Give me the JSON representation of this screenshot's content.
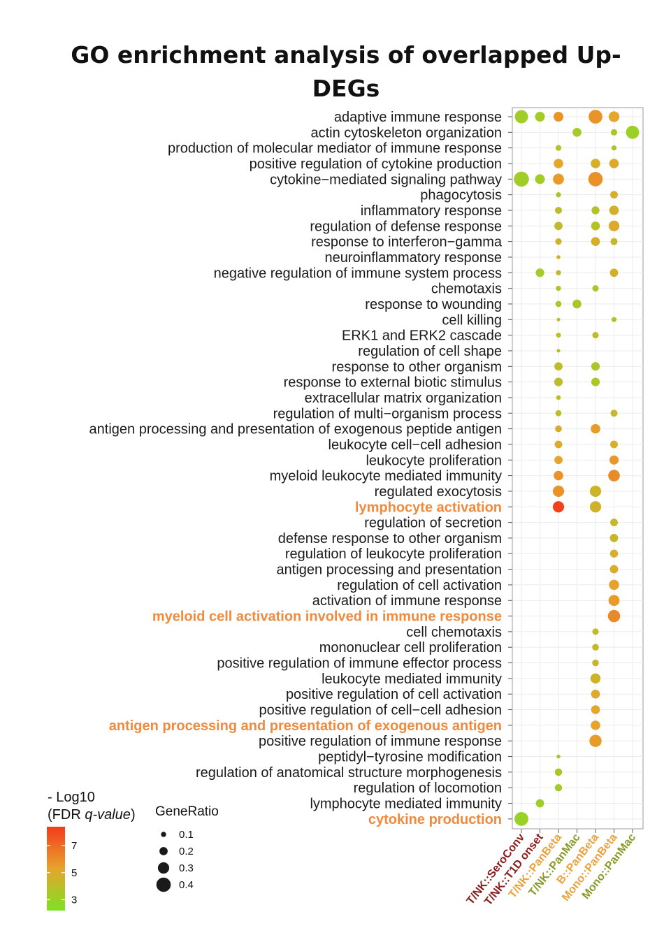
{
  "chart_data": {
    "type": "scatter",
    "title_lines": [
      "GO enrichment analysis of overlapped Up-",
      "DEGs"
    ],
    "columns": [
      {
        "label": "T/NK::SeroConv",
        "color": "#8b1c1c"
      },
      {
        "label": "T/NK::T1D onset",
        "color": "#8b1c1c"
      },
      {
        "label": "T/NK::PanBeta",
        "color": "#e8a33c"
      },
      {
        "label": "T/NK::PanMac",
        "color": "#8a9a2a"
      },
      {
        "label": "B::PanBeta",
        "color": "#e8a33c"
      },
      {
        "label": "Mono::PanBeta",
        "color": "#e8a33c"
      },
      {
        "label": "Mono::PanMac",
        "color": "#8a9a2a"
      }
    ],
    "terms": [
      {
        "label": "adaptive immune response",
        "highlight": false
      },
      {
        "label": "actin cytoskeleton organization",
        "highlight": false
      },
      {
        "label": "production of molecular mediator of immune response",
        "highlight": false
      },
      {
        "label": "positive regulation of cytokine production",
        "highlight": false
      },
      {
        "label": "cytokine−mediated signaling pathway",
        "highlight": false
      },
      {
        "label": "phagocytosis",
        "highlight": false
      },
      {
        "label": "inflammatory response",
        "highlight": false
      },
      {
        "label": "regulation of defense response",
        "highlight": false
      },
      {
        "label": "response to interferon−gamma",
        "highlight": false
      },
      {
        "label": "neuroinflammatory response",
        "highlight": false
      },
      {
        "label": "negative regulation of immune system process",
        "highlight": false
      },
      {
        "label": "chemotaxis",
        "highlight": false
      },
      {
        "label": "response to wounding",
        "highlight": false
      },
      {
        "label": "cell killing",
        "highlight": false
      },
      {
        "label": "ERK1 and ERK2 cascade",
        "highlight": false
      },
      {
        "label": "regulation of cell shape",
        "highlight": false
      },
      {
        "label": "response to other organism",
        "highlight": false
      },
      {
        "label": "response to external biotic stimulus",
        "highlight": false
      },
      {
        "label": "extracellular matrix organization",
        "highlight": false
      },
      {
        "label": "regulation of multi−organism process",
        "highlight": false
      },
      {
        "label": "antigen processing and presentation of exogenous peptide antigen",
        "highlight": false
      },
      {
        "label": "leukocyte cell−cell adhesion",
        "highlight": false
      },
      {
        "label": "leukocyte proliferation",
        "highlight": false
      },
      {
        "label": "myeloid leukocyte mediated immunity",
        "highlight": false
      },
      {
        "label": "regulated exocytosis",
        "highlight": false
      },
      {
        "label": "lymphocyte activation",
        "highlight": true
      },
      {
        "label": "regulation of secretion",
        "highlight": false
      },
      {
        "label": "defense response to other organism",
        "highlight": false
      },
      {
        "label": "regulation of leukocyte proliferation",
        "highlight": false
      },
      {
        "label": "antigen processing and presentation",
        "highlight": false
      },
      {
        "label": "regulation of cell activation",
        "highlight": false
      },
      {
        "label": "activation of immune response",
        "highlight": false
      },
      {
        "label": "myeloid cell activation involved in immune response",
        "highlight": true
      },
      {
        "label": "cell chemotaxis",
        "highlight": false
      },
      {
        "label": "mononuclear cell proliferation",
        "highlight": false
      },
      {
        "label": "positive regulation of immune effector process",
        "highlight": false
      },
      {
        "label": "leukocyte mediated immunity",
        "highlight": false
      },
      {
        "label": "positive regulation of cell activation",
        "highlight": false
      },
      {
        "label": "positive regulation of cell−cell adhesion",
        "highlight": false
      },
      {
        "label": "antigen processing and presentation of exogenous antigen",
        "highlight": true
      },
      {
        "label": "positive regulation of immune response",
        "highlight": false
      },
      {
        "label": "peptidyl−tyrosine modification",
        "highlight": false
      },
      {
        "label": "regulation of anatomical structure morphogenesis",
        "highlight": false
      },
      {
        "label": "regulation of locomotion",
        "highlight": false
      },
      {
        "label": "lymphocyte mediated immunity",
        "highlight": false
      },
      {
        "label": "cytokine production",
        "highlight": true
      }
    ],
    "points": [
      {
        "term": 0,
        "col": 0,
        "gene_ratio": 0.36,
        "neg_log10_fdr": 3.2
      },
      {
        "term": 0,
        "col": 1,
        "gene_ratio": 0.25,
        "neg_log10_fdr": 3.3
      },
      {
        "term": 0,
        "col": 2,
        "gene_ratio": 0.25,
        "neg_log10_fdr": 5.8
      },
      {
        "term": 0,
        "col": 4,
        "gene_ratio": 0.38,
        "neg_log10_fdr": 5.8
      },
      {
        "term": 0,
        "col": 5,
        "gene_ratio": 0.28,
        "neg_log10_fdr": 5.2
      },
      {
        "term": 1,
        "col": 3,
        "gene_ratio": 0.22,
        "neg_log10_fdr": 3.3
      },
      {
        "term": 1,
        "col": 5,
        "gene_ratio": 0.14,
        "neg_log10_fdr": 3.6
      },
      {
        "term": 1,
        "col": 6,
        "gene_ratio": 0.36,
        "neg_log10_fdr": 3.0
      },
      {
        "term": 2,
        "col": 2,
        "gene_ratio": 0.12,
        "neg_log10_fdr": 3.8
      },
      {
        "term": 2,
        "col": 5,
        "gene_ratio": 0.1,
        "neg_log10_fdr": 3.6
      },
      {
        "term": 3,
        "col": 2,
        "gene_ratio": 0.24,
        "neg_log10_fdr": 5.2
      },
      {
        "term": 3,
        "col": 4,
        "gene_ratio": 0.24,
        "neg_log10_fdr": 4.8
      },
      {
        "term": 3,
        "col": 5,
        "gene_ratio": 0.24,
        "neg_log10_fdr": 5.0
      },
      {
        "term": 4,
        "col": 0,
        "gene_ratio": 0.42,
        "neg_log10_fdr": 3.2
      },
      {
        "term": 4,
        "col": 1,
        "gene_ratio": 0.25,
        "neg_log10_fdr": 3.3
      },
      {
        "term": 4,
        "col": 2,
        "gene_ratio": 0.29,
        "neg_log10_fdr": 5.6
      },
      {
        "term": 4,
        "col": 4,
        "gene_ratio": 0.4,
        "neg_log10_fdr": 5.9
      },
      {
        "term": 5,
        "col": 2,
        "gene_ratio": 0.1,
        "neg_log10_fdr": 3.7
      },
      {
        "term": 5,
        "col": 5,
        "gene_ratio": 0.18,
        "neg_log10_fdr": 4.8
      },
      {
        "term": 6,
        "col": 2,
        "gene_ratio": 0.16,
        "neg_log10_fdr": 4.1
      },
      {
        "term": 6,
        "col": 4,
        "gene_ratio": 0.19,
        "neg_log10_fdr": 3.8
      },
      {
        "term": 6,
        "col": 5,
        "gene_ratio": 0.24,
        "neg_log10_fdr": 4.7
      },
      {
        "term": 7,
        "col": 2,
        "gene_ratio": 0.2,
        "neg_log10_fdr": 4.2
      },
      {
        "term": 7,
        "col": 4,
        "gene_ratio": 0.22,
        "neg_log10_fdr": 3.8
      },
      {
        "term": 7,
        "col": 5,
        "gene_ratio": 0.28,
        "neg_log10_fdr": 5.0
      },
      {
        "term": 8,
        "col": 2,
        "gene_ratio": 0.14,
        "neg_log10_fdr": 4.6
      },
      {
        "term": 8,
        "col": 4,
        "gene_ratio": 0.22,
        "neg_log10_fdr": 4.8
      },
      {
        "term": 8,
        "col": 5,
        "gene_ratio": 0.16,
        "neg_log10_fdr": 4.3
      },
      {
        "term": 9,
        "col": 2,
        "gene_ratio": 0.06,
        "neg_log10_fdr": 4.6
      },
      {
        "term": 10,
        "col": 1,
        "gene_ratio": 0.21,
        "neg_log10_fdr": 3.3
      },
      {
        "term": 10,
        "col": 2,
        "gene_ratio": 0.1,
        "neg_log10_fdr": 4.2
      },
      {
        "term": 10,
        "col": 5,
        "gene_ratio": 0.2,
        "neg_log10_fdr": 4.7
      },
      {
        "term": 11,
        "col": 2,
        "gene_ratio": 0.1,
        "neg_log10_fdr": 3.7
      },
      {
        "term": 11,
        "col": 4,
        "gene_ratio": 0.14,
        "neg_log10_fdr": 3.7
      },
      {
        "term": 12,
        "col": 2,
        "gene_ratio": 0.13,
        "neg_log10_fdr": 3.5
      },
      {
        "term": 12,
        "col": 3,
        "gene_ratio": 0.22,
        "neg_log10_fdr": 3.4
      },
      {
        "term": 13,
        "col": 2,
        "gene_ratio": 0.05,
        "neg_log10_fdr": 4.0
      },
      {
        "term": 13,
        "col": 5,
        "gene_ratio": 0.1,
        "neg_log10_fdr": 3.8
      },
      {
        "term": 14,
        "col": 2,
        "gene_ratio": 0.09,
        "neg_log10_fdr": 4.0
      },
      {
        "term": 14,
        "col": 4,
        "gene_ratio": 0.14,
        "neg_log10_fdr": 4.0
      },
      {
        "term": 15,
        "col": 2,
        "gene_ratio": 0.05,
        "neg_log10_fdr": 3.9
      },
      {
        "term": 16,
        "col": 2,
        "gene_ratio": 0.2,
        "neg_log10_fdr": 4.0
      },
      {
        "term": 16,
        "col": 4,
        "gene_ratio": 0.21,
        "neg_log10_fdr": 3.6
      },
      {
        "term": 17,
        "col": 2,
        "gene_ratio": 0.21,
        "neg_log10_fdr": 4.0
      },
      {
        "term": 17,
        "col": 4,
        "gene_ratio": 0.21,
        "neg_log10_fdr": 3.6
      },
      {
        "term": 18,
        "col": 2,
        "gene_ratio": 0.08,
        "neg_log10_fdr": 4.0
      },
      {
        "term": 19,
        "col": 2,
        "gene_ratio": 0.13,
        "neg_log10_fdr": 4.0
      },
      {
        "term": 19,
        "col": 5,
        "gene_ratio": 0.16,
        "neg_log10_fdr": 4.3
      },
      {
        "term": 20,
        "col": 2,
        "gene_ratio": 0.15,
        "neg_log10_fdr": 4.9
      },
      {
        "term": 20,
        "col": 4,
        "gene_ratio": 0.24,
        "neg_log10_fdr": 5.6
      },
      {
        "term": 21,
        "col": 2,
        "gene_ratio": 0.18,
        "neg_log10_fdr": 5.0
      },
      {
        "term": 21,
        "col": 5,
        "gene_ratio": 0.18,
        "neg_log10_fdr": 4.8
      },
      {
        "term": 22,
        "col": 2,
        "gene_ratio": 0.2,
        "neg_log10_fdr": 5.3
      },
      {
        "term": 22,
        "col": 5,
        "gene_ratio": 0.23,
        "neg_log10_fdr": 5.7
      },
      {
        "term": 23,
        "col": 2,
        "gene_ratio": 0.24,
        "neg_log10_fdr": 5.8
      },
      {
        "term": 23,
        "col": 5,
        "gene_ratio": 0.31,
        "neg_log10_fdr": 6.1
      },
      {
        "term": 24,
        "col": 2,
        "gene_ratio": 0.3,
        "neg_log10_fdr": 5.8
      },
      {
        "term": 24,
        "col": 4,
        "gene_ratio": 0.3,
        "neg_log10_fdr": 4.5
      },
      {
        "term": 25,
        "col": 2,
        "gene_ratio": 0.3,
        "neg_log10_fdr": 8.2
      },
      {
        "term": 25,
        "col": 4,
        "gene_ratio": 0.3,
        "neg_log10_fdr": 4.6
      },
      {
        "term": 26,
        "col": 5,
        "gene_ratio": 0.18,
        "neg_log10_fdr": 4.3
      },
      {
        "term": 27,
        "col": 5,
        "gene_ratio": 0.2,
        "neg_log10_fdr": 4.4
      },
      {
        "term": 28,
        "col": 5,
        "gene_ratio": 0.19,
        "neg_log10_fdr": 5.0
      },
      {
        "term": 29,
        "col": 5,
        "gene_ratio": 0.2,
        "neg_log10_fdr": 5.0
      },
      {
        "term": 30,
        "col": 5,
        "gene_ratio": 0.26,
        "neg_log10_fdr": 5.4
      },
      {
        "term": 31,
        "col": 5,
        "gene_ratio": 0.29,
        "neg_log10_fdr": 5.6
      },
      {
        "term": 32,
        "col": 5,
        "gene_ratio": 0.33,
        "neg_log10_fdr": 6.1
      },
      {
        "term": 33,
        "col": 4,
        "gene_ratio": 0.14,
        "neg_log10_fdr": 4.2
      },
      {
        "term": 34,
        "col": 4,
        "gene_ratio": 0.15,
        "neg_log10_fdr": 4.3
      },
      {
        "term": 35,
        "col": 4,
        "gene_ratio": 0.15,
        "neg_log10_fdr": 4.4
      },
      {
        "term": 36,
        "col": 4,
        "gene_ratio": 0.26,
        "neg_log10_fdr": 4.5
      },
      {
        "term": 37,
        "col": 4,
        "gene_ratio": 0.22,
        "neg_log10_fdr": 5.0
      },
      {
        "term": 38,
        "col": 4,
        "gene_ratio": 0.22,
        "neg_log10_fdr": 5.2
      },
      {
        "term": 39,
        "col": 4,
        "gene_ratio": 0.24,
        "neg_log10_fdr": 5.4
      },
      {
        "term": 40,
        "col": 4,
        "gene_ratio": 0.33,
        "neg_log10_fdr": 5.6
      },
      {
        "term": 41,
        "col": 2,
        "gene_ratio": 0.06,
        "neg_log10_fdr": 3.6
      },
      {
        "term": 42,
        "col": 2,
        "gene_ratio": 0.17,
        "neg_log10_fdr": 3.4
      },
      {
        "term": 43,
        "col": 2,
        "gene_ratio": 0.17,
        "neg_log10_fdr": 3.3
      },
      {
        "term": 44,
        "col": 1,
        "gene_ratio": 0.2,
        "neg_log10_fdr": 3.2
      },
      {
        "term": 45,
        "col": 0,
        "gene_ratio": 0.38,
        "neg_log10_fdr": 3.0
      }
    ],
    "color_legend": {
      "title_line1": "- Log10",
      "title_line2a": "(FDR ",
      "title_line2b": "q-value",
      "title_line2c": ")",
      "ticks": [
        "7",
        "5",
        "3"
      ],
      "tick_values": [
        7,
        5,
        3
      ],
      "min": 2.2,
      "max": 8.4,
      "colors": [
        "#7fe024",
        "#e6a52c",
        "#f33b1c"
      ]
    },
    "size_legend": {
      "title": "GeneRatio",
      "labels": [
        "0.1",
        "0.2",
        "0.3",
        "0.4"
      ],
      "values": [
        0.1,
        0.2,
        0.3,
        0.4
      ]
    },
    "grid": true
  }
}
